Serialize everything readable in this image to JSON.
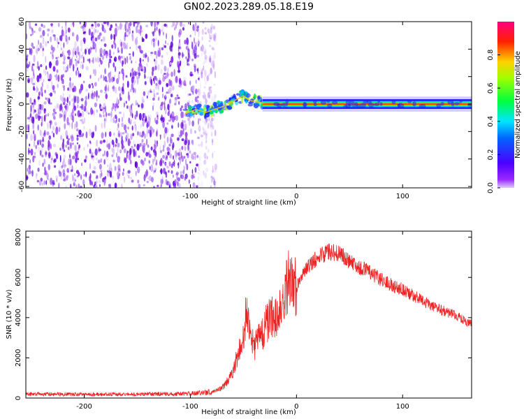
{
  "title": "GN02.2023.289.05.18.E19",
  "colors": {
    "snr_line": "#ee2222",
    "spectrum_band": "#1a1aff",
    "noise": "#7a1fe6"
  },
  "chart_data": [
    {
      "type": "heatmap",
      "xlabel": "Height of straight line (km)",
      "ylabel": "Frequency (Hz)",
      "xlim": [
        -255,
        165
      ],
      "ylim": [
        -61,
        60
      ],
      "xticks": [
        -200,
        -100,
        0,
        100
      ],
      "yticks": [
        -60,
        -40,
        -20,
        0,
        20,
        40,
        60
      ],
      "grid": false,
      "colorbar": {
        "label": "Normalized spectral amplitude",
        "range": [
          0,
          1
        ],
        "ticks": [
          0.0,
          0.2,
          0.4,
          0.6,
          0.8
        ],
        "colormap": "hsv-rainbow (violet → blue → cyan → green → yellow → red → magenta)"
      },
      "features": [
        {
          "region": "broadband noise",
          "x_range": [
            -255,
            -85
          ],
          "freq_range": [
            -61,
            60
          ],
          "amplitude": "low (violet)"
        },
        {
          "region": "signal onset",
          "x_range": [
            -105,
            -30
          ],
          "freq_range": [
            -15,
            10
          ],
          "amplitude": "moderate (blue/green/yellow)"
        },
        {
          "region": "narrow carrier band",
          "x_range": [
            -30,
            165
          ],
          "freq_center": 0,
          "amplitude": "high (red core)"
        }
      ],
      "band_centerline": {
        "x": [
          -105,
          -95,
          -85,
          -78,
          -70,
          -62,
          -55,
          -50,
          -45,
          -40,
          -30,
          -20,
          0,
          50,
          100,
          165
        ],
        "freq": [
          -7,
          -4,
          -6,
          -4,
          -2,
          1,
          4,
          6,
          3,
          2,
          0.5,
          0,
          0,
          0,
          0,
          0
        ]
      }
    },
    {
      "type": "line",
      "xlabel": "Height of straight line (km)",
      "ylabel": "SNR (10 * v/v)",
      "xlim": [
        -255,
        165
      ],
      "ylim": [
        0,
        8300
      ],
      "xticks": [
        -200,
        -100,
        0,
        100
      ],
      "yticks": [
        0,
        2000,
        4000,
        6000,
        8000
      ],
      "grid": false,
      "series": [
        {
          "envelope_x": [
            -255,
            -200,
            -150,
            -100,
            -80,
            -70,
            -60,
            -55,
            -50,
            -47,
            -45,
            -40,
            -35,
            -30,
            -25,
            -20,
            -15,
            -10,
            -5,
            0,
            10,
            20,
            30,
            40,
            50,
            60,
            70,
            80,
            90,
            100,
            110,
            120,
            130,
            140,
            150,
            160,
            165
          ],
          "envelope_y": [
            200,
            180,
            190,
            220,
            300,
            500,
            1200,
            2200,
            3000,
            4500,
            3500,
            2500,
            3000,
            3500,
            4000,
            4000,
            4500,
            5500,
            6200,
            5500,
            6500,
            7000,
            7300,
            7200,
            6800,
            6500,
            6200,
            5900,
            5600,
            5400,
            5100,
            4800,
            4500,
            4300,
            4100,
            3800,
            3700
          ]
        }
      ]
    }
  ]
}
